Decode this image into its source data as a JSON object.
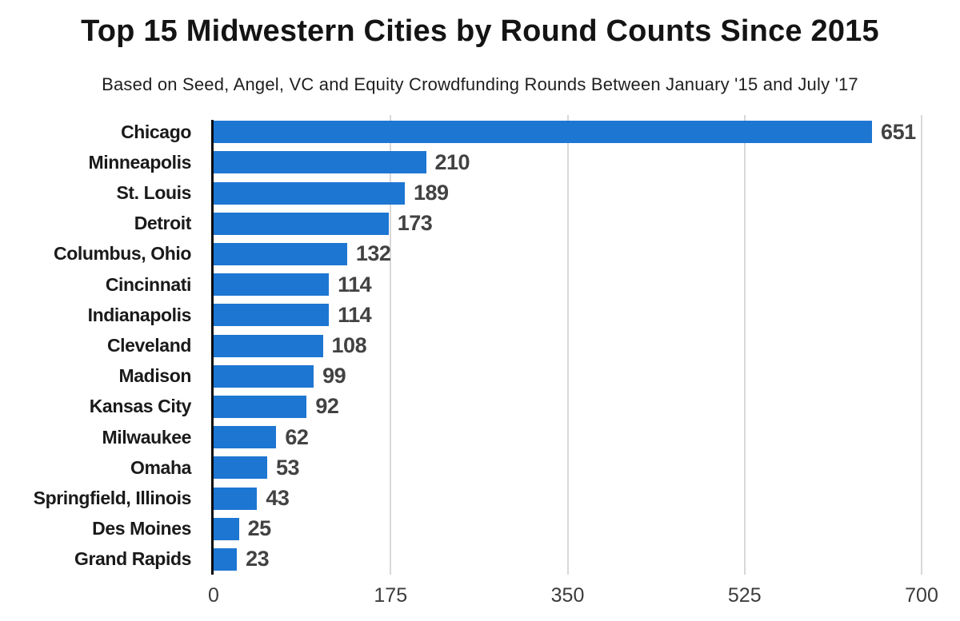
{
  "header": {
    "title": "Top 15 Midwestern Cities by Round Counts Since 2015",
    "subtitle": "Based on Seed, Angel, VC and Equity Crowdfunding Rounds Between January '15 and July '17"
  },
  "chart_data": {
    "type": "bar",
    "orientation": "horizontal",
    "title": "Top 15 Midwestern Cities by Round Counts Since 2015",
    "subtitle": "Based on Seed, Angel, VC and Equity Crowdfunding Rounds Between January '15 and July '17",
    "categories": [
      "Chicago",
      "Minneapolis",
      "St. Louis",
      "Detroit",
      "Columbus, Ohio",
      "Cincinnati",
      "Indianapolis",
      "Cleveland",
      "Madison",
      "Kansas City",
      "Milwaukee",
      "Omaha",
      "Springfield, Illinois",
      "Des Moines",
      "Grand Rapids"
    ],
    "values": [
      651,
      210,
      189,
      173,
      132,
      114,
      114,
      108,
      99,
      92,
      62,
      53,
      43,
      25,
      23
    ],
    "xlabel": "",
    "ylabel": "",
    "xlim": [
      0,
      700
    ],
    "xticks": [
      0,
      175,
      350,
      525,
      700
    ],
    "grid": "vertical-gridlines-at-ticks",
    "legend": "none",
    "colors": {
      "bar": "#1d76d2",
      "value_label": "#424242",
      "category_label": "#1a1a1a",
      "tick_label": "#3c3c3c",
      "axis_line": "#0a0a0a",
      "gridline": "#d8d8d8",
      "background": "#ffffff"
    }
  }
}
